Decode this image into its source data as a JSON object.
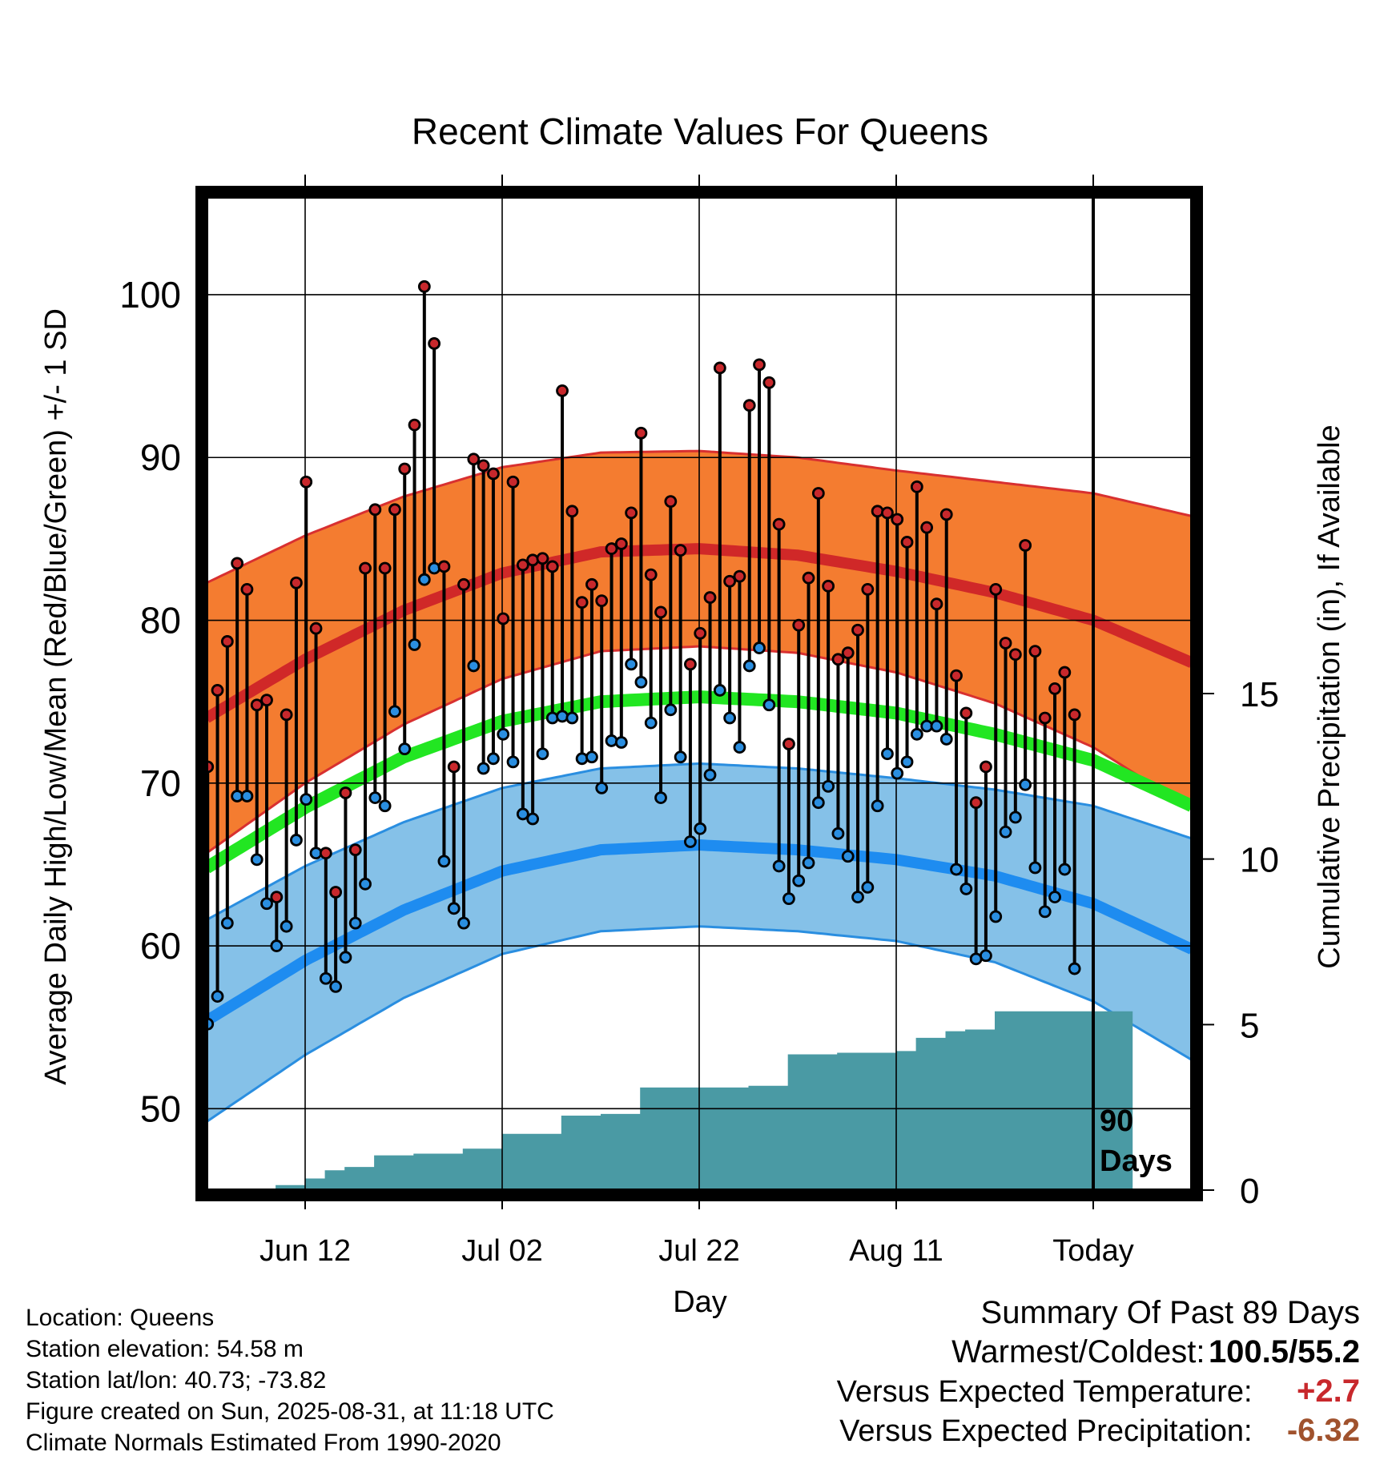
{
  "chart_data": {
    "type": "line",
    "title": "Recent Climate Values For Queens",
    "xlabel": "Day",
    "ylabel": "Average Daily High/Low/Mean (Red/Blue/Green) +/- 1 SD",
    "y2label": "Cumulative Precipitation (in), If Available",
    "ylim": [
      45,
      106
    ],
    "y2lim": [
      0,
      30
    ],
    "yticks": [
      50,
      60,
      70,
      80,
      90,
      100
    ],
    "y2ticks": [
      0,
      5,
      10,
      15
    ],
    "xticks": [
      "Jun 12",
      "Jul 02",
      "Jul 22",
      "Aug 11",
      "Today"
    ],
    "xtick_days": [
      10,
      30,
      50,
      70,
      90
    ],
    "xlim": [
      0,
      100
    ],
    "today_day": 90,
    "period_label": "90\nDays",
    "grid": true,
    "normals": {
      "day": [
        0,
        10,
        20,
        30,
        40,
        50,
        60,
        70,
        80,
        90,
        100
      ],
      "high_mean": [
        74.0,
        77.6,
        80.6,
        82.9,
        84.2,
        84.4,
        84.0,
        83.0,
        81.7,
        80.0,
        77.4
      ],
      "high_sd": [
        8.3,
        7.6,
        7.0,
        6.5,
        6.1,
        6.0,
        6.0,
        6.2,
        6.8,
        7.8,
        9.0
      ],
      "mean": [
        64.8,
        68.5,
        71.6,
        73.8,
        75.0,
        75.3,
        75.0,
        74.3,
        73.0,
        71.4,
        68.6
      ],
      "low_mean": [
        55.4,
        59.1,
        62.2,
        64.6,
        65.9,
        66.2,
        65.9,
        65.3,
        64.3,
        62.6,
        59.8
      ],
      "low_sd": [
        6.2,
        5.8,
        5.4,
        5.1,
        5.0,
        5.0,
        5.0,
        5.0,
        5.3,
        6.0,
        6.8
      ]
    },
    "series": [
      {
        "name": "High",
        "color": "#c8282c",
        "values": [
          71.0,
          75.7,
          78.7,
          83.5,
          81.9,
          74.8,
          75.1,
          63.0,
          74.2,
          82.3,
          88.5,
          79.5,
          65.7,
          63.3,
          69.4,
          65.9,
          83.2,
          86.8,
          83.2,
          86.8,
          89.3,
          92.0,
          100.5,
          97.0,
          83.3,
          71.0,
          82.2,
          89.9,
          89.5,
          89.0,
          80.1,
          88.5,
          83.4,
          83.7,
          83.8,
          83.3,
          94.1,
          86.7,
          81.1,
          82.2,
          81.2,
          84.4,
          84.7,
          86.6,
          91.5,
          82.8,
          80.5,
          87.3,
          84.3,
          77.3,
          79.2,
          81.4,
          95.5,
          82.4,
          82.7,
          93.2,
          95.7,
          94.6,
          85.9,
          72.4,
          79.7,
          82.6,
          87.8,
          82.1,
          77.6,
          78.0,
          79.4,
          81.9,
          86.7,
          86.6,
          86.2,
          84.8,
          88.2,
          85.7,
          81.0,
          86.5,
          76.6,
          74.3,
          68.8,
          71.0,
          81.9,
          78.6,
          77.9,
          84.6,
          78.1,
          74.0,
          75.8,
          76.8,
          74.2
        ]
      },
      {
        "name": "Low",
        "color": "#2a8ee0",
        "values": [
          55.2,
          56.9,
          61.4,
          69.2,
          69.2,
          65.3,
          62.6,
          60.0,
          61.2,
          66.5,
          69.0,
          65.7,
          58.0,
          57.5,
          59.3,
          61.4,
          63.8,
          69.1,
          68.6,
          74.4,
          72.1,
          78.5,
          82.5,
          83.2,
          65.2,
          62.3,
          61.4,
          77.2,
          70.9,
          71.5,
          73.0,
          71.3,
          68.1,
          67.8,
          71.8,
          74.0,
          74.1,
          74.0,
          71.5,
          71.6,
          69.7,
          72.6,
          72.5,
          77.3,
          76.2,
          73.7,
          69.1,
          74.5,
          71.6,
          66.4,
          67.2,
          70.5,
          75.7,
          74.0,
          72.2,
          77.2,
          78.3,
          74.8,
          64.9,
          62.9,
          64.0,
          65.1,
          68.8,
          69.8,
          66.9,
          65.5,
          63.0,
          63.6,
          68.6,
          71.8,
          70.6,
          71.3,
          73.0,
          73.5,
          73.5,
          72.7,
          64.7,
          63.5,
          59.2,
          59.4,
          61.8,
          67.0,
          67.9,
          69.9,
          64.8,
          62.1,
          63.0,
          64.7,
          58.6
        ]
      }
    ],
    "precip_cumulative": {
      "name": "Cumulative Precipitation",
      "color": "#4a9aa4",
      "breakpoints_day": [
        0,
        7,
        10,
        12,
        14,
        17,
        21,
        26,
        30,
        36,
        40,
        44,
        50,
        55,
        59,
        64,
        70,
        72,
        75,
        77,
        80,
        84,
        90,
        94
      ],
      "values": [
        0.0,
        0.15,
        0.35,
        0.6,
        0.7,
        1.05,
        1.1,
        1.25,
        1.7,
        2.25,
        2.3,
        3.1,
        3.1,
        3.15,
        4.1,
        4.15,
        4.2,
        4.6,
        4.8,
        4.85,
        5.4,
        5.4,
        5.4,
        5.4
      ]
    }
  },
  "info": {
    "location": "Location: Queens",
    "elevation": "Station elevation: 54.58 m",
    "latlon": "Station lat/lon: 40.73; -73.82",
    "created": "Figure created on Sun, 2025-08-31, at 11:18 UTC",
    "normals": "Climate Normals Estimated From 1990-2020"
  },
  "summary": {
    "title": "Summary Of Past 89 Days",
    "warm_cold_label": "Warmest/Coldest:",
    "warm_cold_value": "100.5/55.2",
    "temp_label": "Versus Expected Temperature:",
    "temp_value": "+2.7",
    "precip_label": "Versus Expected Precipitation:",
    "precip_value": "-6.32"
  }
}
